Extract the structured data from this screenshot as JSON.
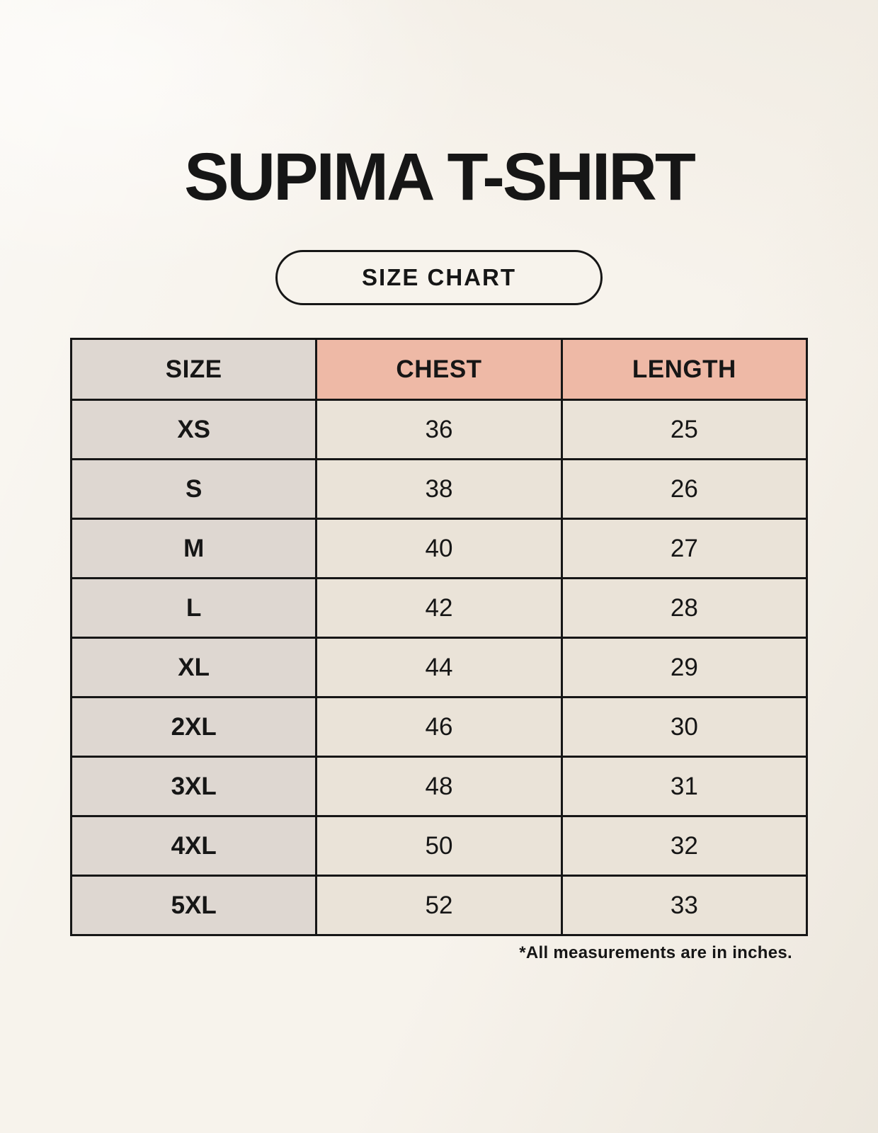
{
  "page": {
    "title": "SUPIMA T-SHIRT",
    "button_label": "SIZE CHART",
    "footnote": "*All measurements are in inches."
  },
  "table": {
    "columns": [
      "SIZE",
      "CHEST",
      "LENGTH"
    ],
    "rows": [
      {
        "size": "XS",
        "chest": "36",
        "length": "25"
      },
      {
        "size": "S",
        "chest": "38",
        "length": "26"
      },
      {
        "size": "M",
        "chest": "40",
        "length": "27"
      },
      {
        "size": "L",
        "chest": "42",
        "length": "28"
      },
      {
        "size": "XL",
        "chest": "44",
        "length": "29"
      },
      {
        "size": "2XL",
        "chest": "46",
        "length": "30"
      },
      {
        "size": "3XL",
        "chest": "48",
        "length": "31"
      },
      {
        "size": "4XL",
        "chest": "50",
        "length": "32"
      },
      {
        "size": "5XL",
        "chest": "52",
        "length": "33"
      }
    ]
  },
  "colors": {
    "background": "#f7f3ec",
    "header_accent": "#eeb9a6",
    "size_column": "#ded7d1",
    "cell": "#eae3d8",
    "border": "#161616",
    "text": "#161616"
  }
}
